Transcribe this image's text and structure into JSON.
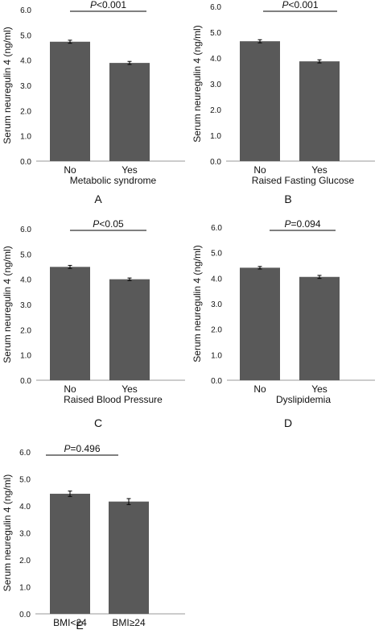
{
  "chart_data": [
    {
      "panel": "A",
      "type": "bar",
      "categories": [
        "No",
        "Yes"
      ],
      "values": [
        4.73,
        3.89
      ],
      "errors": [
        0.06,
        0.06
      ],
      "xlabel": "Metabolic syndrome",
      "ylabel": "Serum neuregulin 4 (ng/ml)",
      "ylim": [
        0,
        6
      ],
      "yticks": [
        "0.0",
        "1.0",
        "2.0",
        "3.0",
        "4.0",
        "5.0",
        "6.0"
      ],
      "p_label": {
        "italic": "P",
        "rest": "<0.001"
      }
    },
    {
      "panel": "B",
      "type": "bar",
      "categories": [
        "No",
        "Yes"
      ],
      "values": [
        4.65,
        3.87
      ],
      "errors": [
        0.06,
        0.06
      ],
      "xlabel": "Raised Fasting Glucose",
      "ylabel": "Serum neuregulin 4 (ng/ml)",
      "ylim": [
        0,
        6
      ],
      "yticks": [
        "0.0",
        "1.0",
        "2.0",
        "3.0",
        "4.0",
        "5.0",
        "6.0"
      ],
      "p_label": {
        "italic": "P",
        "rest": "<0.001"
      }
    },
    {
      "panel": "C",
      "type": "bar",
      "categories": [
        "No",
        "Yes"
      ],
      "values": [
        4.49,
        4.0
      ],
      "errors": [
        0.06,
        0.05
      ],
      "xlabel": "Raised Blood Pressure",
      "ylabel": "Serum neuregulin 4 (ng/ml)",
      "ylim": [
        0,
        6
      ],
      "yticks": [
        "0.0",
        "1.0",
        "2.0",
        "3.0",
        "4.0",
        "5.0",
        "6.0"
      ],
      "p_label": {
        "italic": "P",
        "rest": "<0.05"
      }
    },
    {
      "panel": "D",
      "type": "bar",
      "categories": [
        "No",
        "Yes"
      ],
      "values": [
        4.41,
        4.05
      ],
      "errors": [
        0.05,
        0.06
      ],
      "xlabel": "Dyslipidemia",
      "ylabel": "Serum neuregulin 4 (ng/ml)",
      "ylim": [
        0,
        6
      ],
      "yticks": [
        "0.0",
        "1.0",
        "2.0",
        "3.0",
        "4.0",
        "5.0",
        "6.0"
      ],
      "p_label": {
        "italic": "P",
        "rest": "=0.094"
      }
    },
    {
      "panel": "E",
      "type": "bar",
      "categories": [
        "BMI<24",
        "BMI≥24"
      ],
      "values": [
        4.45,
        4.16
      ],
      "errors": [
        0.1,
        0.11
      ],
      "xlabel": "",
      "ylabel": "Serum neuregulin 4 (ng/ml)",
      "ylim": [
        0,
        6
      ],
      "yticks": [
        "0.0",
        "1.0",
        "2.0",
        "3.0",
        "4.0",
        "5.0",
        "6.0"
      ],
      "p_label": {
        "italic": "P",
        "rest": "=0.496"
      }
    }
  ],
  "colors": {
    "bar": "#595959",
    "axis": "#9a9a9a",
    "text": "#111111"
  }
}
